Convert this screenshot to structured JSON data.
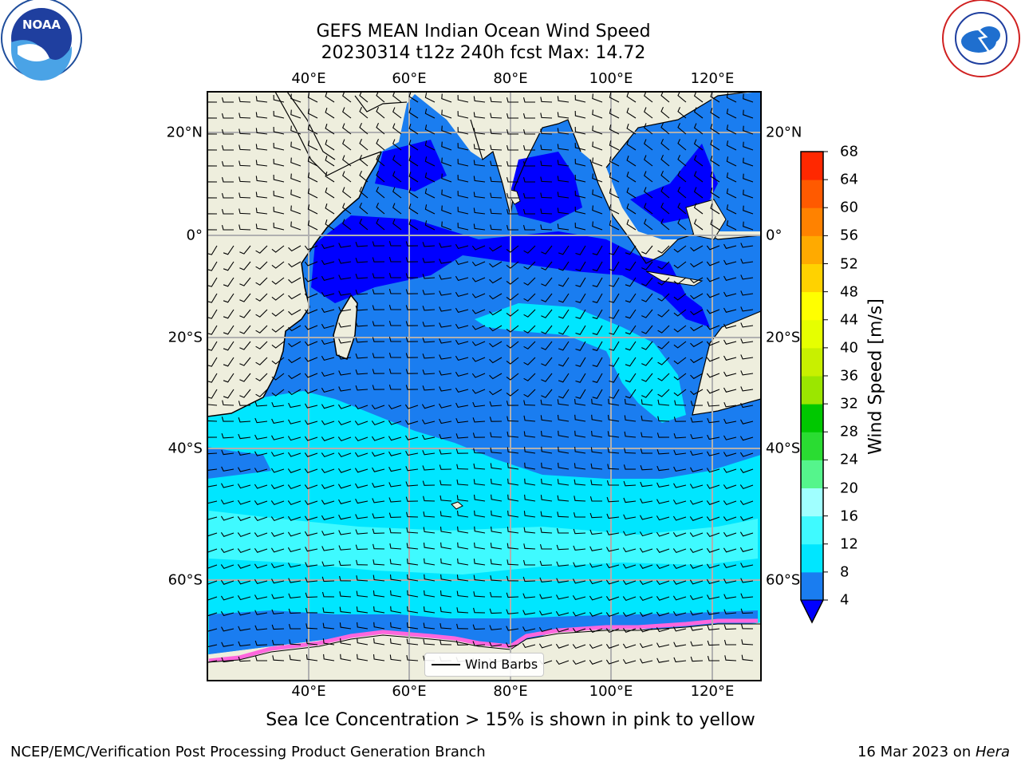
{
  "title_line1": "GEFS MEAN Indian Ocean Wind Speed",
  "title_line2": "20230314 t12z 240h fcst   Max: 14.72",
  "top_lon_labels": [
    "40°E",
    "60°E",
    "80°E",
    "100°E",
    "120°E"
  ],
  "bottom_lon_labels": [
    "40°E",
    "60°E",
    "80°E",
    "100°E",
    "120°E"
  ],
  "left_lat_labels": [
    "20°N",
    "0°",
    "20°S",
    "40°S",
    "60°S"
  ],
  "right_lat_labels": [
    "20°N",
    "0°",
    "20°S",
    "40°S",
    "60°S"
  ],
  "legend_label": "Wind Barbs",
  "colorbar": {
    "label": "Wind Speed [m/s]",
    "ticks": [
      "4",
      "8",
      "12",
      "16",
      "20",
      "24",
      "28",
      "32",
      "36",
      "40",
      "44",
      "48",
      "52",
      "56",
      "60",
      "64",
      "68"
    ],
    "colors": [
      "#1a7df0",
      "#00e6ff",
      "#3ffaff",
      "#a0ffff",
      "#55f58c",
      "#2adc32",
      "#00c800",
      "#9be600",
      "#c8f000",
      "#e6ff00",
      "#ffff00",
      "#ffd200",
      "#ffaa00",
      "#ff8200",
      "#ff5a00",
      "#ff2800"
    ],
    "under_color": "#0000ff"
  },
  "caption": "Sea Ice Concentration > 15% is shown in pink to yellow",
  "credit": "NCEP/EMC/Verification Post Processing Product Generation Branch",
  "date_text": "16 Mar 2023 on ",
  "date_machine": "Hera",
  "colors": {
    "land": "#eeeedd",
    "ocean_dark": "#1a7df0",
    "ocean_blue": "#0000ff",
    "ocean_cyan": "#00e6ff",
    "ocean_light": "#3ffaff",
    "ice_pink": "#ff66dd"
  },
  "logos": {
    "left": "NOAA",
    "right": "NATIONAL WEATHER SERVICE"
  }
}
